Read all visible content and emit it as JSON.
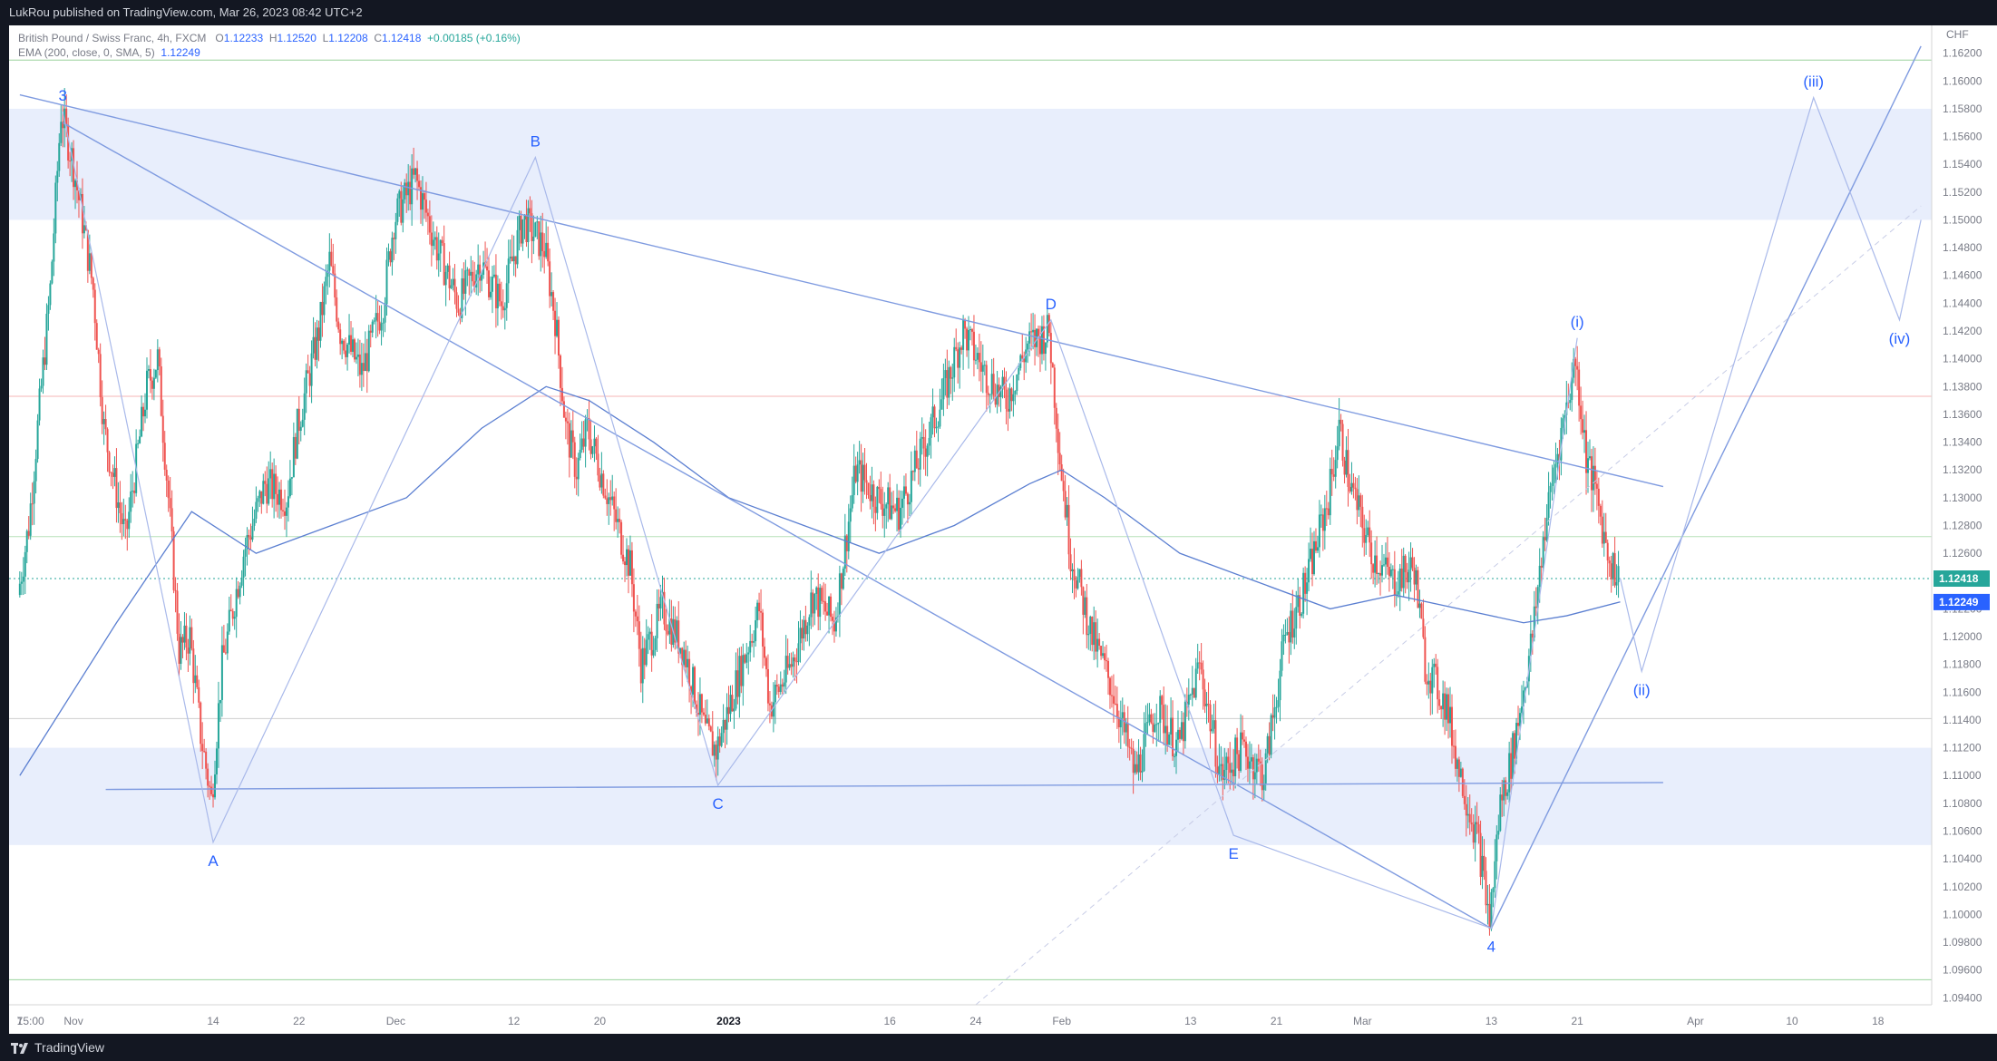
{
  "header": {
    "published": "LukRou published on TradingView.com, Mar 26, 2023 08:42 UTC+2"
  },
  "legend": {
    "symbol": "British Pound / Swiss Franc, 4h, FXCM",
    "o_label": "O",
    "o_value": "1.12233",
    "h_label": "H",
    "h_value": "1.12520",
    "l_label": "L",
    "l_value": "1.12208",
    "c_label": "C",
    "c_value": "1.12418",
    "change": "+0.00185 (+0.16%)",
    "indicator": "EMA (200, close, 0, SMA, 5)",
    "indicator_value": "1.12249"
  },
  "footer": {
    "brand": "TradingView"
  },
  "colors": {
    "up": "#26a69a",
    "down": "#ef5350",
    "ema": "#5b7fd1",
    "zone": "#e8eefc",
    "trendline": "#7f9be0",
    "wave_label": "#2962ff",
    "price_tag": "#26a69a",
    "ema_tag": "#2962ff"
  },
  "chart_data": {
    "type": "candlestick",
    "currency": "CHF",
    "ylim": [
      1.0935,
      1.164
    ],
    "y_ticks": [
      "1.16200",
      "1.16000",
      "1.15800",
      "1.15600",
      "1.15400",
      "1.15200",
      "1.15000",
      "1.14800",
      "1.14600",
      "1.14400",
      "1.14200",
      "1.14000",
      "1.13800",
      "1.13600",
      "1.13400",
      "1.13200",
      "1.13000",
      "1.12800",
      "1.12600",
      "1.12400",
      "1.12200",
      "1.12000",
      "1.11800",
      "1.11600",
      "1.11400",
      "1.11200",
      "1.11000",
      "1.10800",
      "1.10600",
      "1.10400",
      "1.10200",
      "1.10000",
      "1.09800",
      "1.09600",
      "1.09400"
    ],
    "x_ticks": [
      {
        "label": "7",
        "x": "2022-10-27"
      },
      {
        "label": "15:00",
        "x": "2022-10-28"
      },
      {
        "label": "Nov",
        "x": "2022-11-01"
      },
      {
        "label": "14",
        "x": "2022-11-14"
      },
      {
        "label": "22",
        "x": "2022-11-22"
      },
      {
        "label": "Dec",
        "x": "2022-12-01"
      },
      {
        "label": "12",
        "x": "2022-12-12"
      },
      {
        "label": "20",
        "x": "2022-12-20"
      },
      {
        "label": "2023",
        "x": "2023-01-01"
      },
      {
        "label": "16",
        "x": "2023-01-16"
      },
      {
        "label": "24",
        "x": "2023-01-24"
      },
      {
        "label": "Feb",
        "x": "2023-02-01"
      },
      {
        "label": "13",
        "x": "2023-02-13"
      },
      {
        "label": "21",
        "x": "2023-02-21"
      },
      {
        "label": "Mar",
        "x": "2023-03-01"
      },
      {
        "label": "13",
        "x": "2023-03-13"
      },
      {
        "label": "21",
        "x": "2023-03-21"
      },
      {
        "label": "Apr",
        "x": "2023-04-01"
      },
      {
        "label": "10",
        "x": "2023-04-10"
      },
      {
        "label": "18",
        "x": "2023-04-18"
      }
    ],
    "price_path": [
      [
        "2022-10-27",
        1.123
      ],
      [
        "2022-10-28",
        1.128
      ],
      [
        "2022-10-30",
        1.145
      ],
      [
        "2022-10-31",
        1.1578
      ],
      [
        "2022-11-01",
        1.1545
      ],
      [
        "2022-11-02",
        1.15
      ],
      [
        "2022-11-03",
        1.145
      ],
      [
        "2022-11-04",
        1.135
      ],
      [
        "2022-11-06",
        1.127
      ],
      [
        "2022-11-08",
        1.138
      ],
      [
        "2022-11-09",
        1.14
      ],
      [
        "2022-11-10",
        1.13
      ],
      [
        "2022-11-11",
        1.119
      ],
      [
        "2022-11-12",
        1.12
      ],
      [
        "2022-11-13",
        1.113
      ],
      [
        "2022-11-14",
        1.1082
      ],
      [
        "2022-11-15",
        1.118
      ],
      [
        "2022-11-17",
        1.126
      ],
      [
        "2022-11-19",
        1.131
      ],
      [
        "2022-11-21",
        1.13
      ],
      [
        "2022-11-22",
        1.135
      ],
      [
        "2022-11-24",
        1.142
      ],
      [
        "2022-11-25",
        1.147
      ],
      [
        "2022-11-26",
        1.142
      ],
      [
        "2022-11-28",
        1.139
      ],
      [
        "2022-11-30",
        1.144
      ],
      [
        "2022-12-01",
        1.15
      ],
      [
        "2022-12-03",
        1.153
      ],
      [
        "2022-12-05",
        1.148
      ],
      [
        "2022-12-07",
        1.144
      ],
      [
        "2022-12-09",
        1.147
      ],
      [
        "2022-12-11",
        1.144
      ],
      [
        "2022-12-13",
        1.15
      ],
      [
        "2022-12-15",
        1.148
      ],
      [
        "2022-12-16",
        1.143
      ],
      [
        "2022-12-17",
        1.135
      ],
      [
        "2022-12-18",
        1.132
      ],
      [
        "2022-12-19",
        1.135
      ],
      [
        "2022-12-21",
        1.13
      ],
      [
        "2022-12-23",
        1.125
      ],
      [
        "2022-12-24",
        1.118
      ],
      [
        "2022-12-26",
        1.122
      ],
      [
        "2022-12-28",
        1.119
      ],
      [
        "2022-12-30",
        1.113
      ],
      [
        "2022-12-31",
        1.1118
      ],
      [
        "2023-01-02",
        1.117
      ],
      [
        "2023-01-04",
        1.122
      ],
      [
        "2023-01-05",
        1.115
      ],
      [
        "2023-01-07",
        1.118
      ],
      [
        "2023-01-09",
        1.123
      ],
      [
        "2023-01-11",
        1.121
      ],
      [
        "2023-01-13",
        1.132
      ],
      [
        "2023-01-15",
        1.13
      ],
      [
        "2023-01-17",
        1.129
      ],
      [
        "2023-01-19",
        1.133
      ],
      [
        "2023-01-21",
        1.137
      ],
      [
        "2023-01-23",
        1.142
      ],
      [
        "2023-01-25",
        1.139
      ],
      [
        "2023-01-27",
        1.137
      ],
      [
        "2023-01-29",
        1.141
      ],
      [
        "2023-01-31",
        1.142
      ],
      [
        "2023-02-01",
        1.133
      ],
      [
        "2023-02-02",
        1.126
      ],
      [
        "2023-02-04",
        1.12
      ],
      [
        "2023-02-06",
        1.116
      ],
      [
        "2023-02-08",
        1.11
      ],
      [
        "2023-02-10",
        1.115
      ],
      [
        "2023-02-12",
        1.112
      ],
      [
        "2023-02-14",
        1.118
      ],
      [
        "2023-02-16",
        1.11
      ],
      [
        "2023-02-18",
        1.112
      ],
      [
        "2023-02-20",
        1.11
      ],
      [
        "2023-02-22",
        1.12
      ],
      [
        "2023-02-24",
        1.124
      ],
      [
        "2023-02-26",
        1.13
      ],
      [
        "2023-02-27",
        1.135
      ],
      [
        "2023-02-28",
        1.131
      ],
      [
        "2023-03-02",
        1.126
      ],
      [
        "2023-03-04",
        1.124
      ],
      [
        "2023-03-06",
        1.125
      ],
      [
        "2023-03-07",
        1.118
      ],
      [
        "2023-03-09",
        1.115
      ],
      [
        "2023-03-10",
        1.111
      ],
      [
        "2023-03-12",
        1.105
      ],
      [
        "2023-03-13",
        1.0995
      ],
      [
        "2023-03-14",
        1.108
      ],
      [
        "2023-03-15",
        1.111
      ],
      [
        "2023-03-17",
        1.12
      ],
      [
        "2023-03-18",
        1.127
      ],
      [
        "2023-03-19",
        1.132
      ],
      [
        "2023-03-21",
        1.14
      ],
      [
        "2023-03-22",
        1.133
      ],
      [
        "2023-03-23",
        1.13
      ],
      [
        "2023-03-24",
        1.126
      ],
      [
        "2023-03-25",
        1.1242
      ]
    ],
    "ema_path": [
      [
        "2022-10-27",
        1.11
      ],
      [
        "2022-11-05",
        1.121
      ],
      [
        "2022-11-12",
        1.129
      ],
      [
        "2022-11-18",
        1.126
      ],
      [
        "2022-11-25",
        1.128
      ],
      [
        "2022-12-02",
        1.13
      ],
      [
        "2022-12-09",
        1.135
      ],
      [
        "2022-12-15",
        1.138
      ],
      [
        "2022-12-19",
        1.137
      ],
      [
        "2022-12-25",
        1.134
      ],
      [
        "2023-01-01",
        1.13
      ],
      [
        "2023-01-08",
        1.128
      ],
      [
        "2023-01-15",
        1.126
      ],
      [
        "2023-01-22",
        1.128
      ],
      [
        "2023-01-29",
        1.131
      ],
      [
        "2023-02-01",
        1.132
      ],
      [
        "2023-02-05",
        1.13
      ],
      [
        "2023-02-12",
        1.126
      ],
      [
        "2023-02-19",
        1.124
      ],
      [
        "2023-02-26",
        1.122
      ],
      [
        "2023-03-04",
        1.123
      ],
      [
        "2023-03-10",
        1.122
      ],
      [
        "2023-03-16",
        1.121
      ],
      [
        "2023-03-20",
        1.1215
      ],
      [
        "2023-03-25",
        1.1225
      ]
    ],
    "zones": [
      {
        "from": 1.15,
        "to": 1.158
      },
      {
        "from": 1.105,
        "to": 1.112
      }
    ],
    "horizontal_lines": [
      {
        "y": 1.1615,
        "color": "#9ad29c"
      },
      {
        "y": 1.1373,
        "color": "#f5b5b5"
      },
      {
        "y": 1.1272,
        "color": "#b7e0b8"
      },
      {
        "y": 1.1141,
        "color": "#cfcfcf"
      },
      {
        "y": 1.0953,
        "color": "#9ad29c"
      }
    ],
    "trendlines": [
      {
        "from": [
          "2022-10-27",
          1.159
        ],
        "to": [
          "2023-03-29",
          1.1308
        ]
      },
      {
        "from": [
          "2022-11-04",
          1.109
        ],
        "to": [
          "2023-03-29",
          1.1095
        ]
      },
      {
        "from": [
          "2022-10-31",
          1.157
        ],
        "to": [
          "2023-03-13",
          1.099
        ]
      },
      {
        "from": [
          "2023-03-13",
          1.099
        ],
        "to": [
          "2023-04-22",
          1.1625
        ]
      }
    ],
    "dashed_trendline": {
      "from": [
        "2023-01-24",
        1.0935
      ],
      "to": [
        "2023-04-22",
        1.151
      ]
    },
    "waves": [
      {
        "label": "3",
        "x": "2022-10-31",
        "y": 1.1578
      },
      {
        "label": "A",
        "x": "2022-11-14",
        "y": 1.1052
      },
      {
        "label": "B",
        "x": "2022-12-14",
        "y": 1.1545
      },
      {
        "label": "C",
        "x": "2022-12-31",
        "y": 1.1093
      },
      {
        "label": "D",
        "x": "2023-01-31",
        "y": 1.1428
      },
      {
        "label": "E",
        "x": "2023-02-17",
        "y": 1.1057
      },
      {
        "label": "4",
        "x": "2023-03-13",
        "y": 1.099
      },
      {
        "label": "(i)",
        "x": "2023-03-21",
        "y": 1.1415
      },
      {
        "label": "(ii)",
        "x": "2023-03-27",
        "y": 1.1175
      },
      {
        "label": "(iii)",
        "x": "2023-04-12",
        "y": 1.1588
      },
      {
        "label": "(iv)",
        "x": "2023-04-20",
        "y": 1.1428
      }
    ],
    "projection_path": [
      [
        "2023-03-25",
        1.1242
      ],
      [
        "2023-03-27",
        1.1175
      ],
      [
        "2023-04-12",
        1.1588
      ],
      [
        "2023-04-20",
        1.1428
      ],
      [
        "2023-04-22",
        1.15
      ]
    ],
    "price_tags": [
      {
        "value": "1.12418",
        "y": 1.12418,
        "kind": "price"
      },
      {
        "value": "1.12249",
        "y": 1.12249,
        "kind": "ema"
      }
    ]
  }
}
